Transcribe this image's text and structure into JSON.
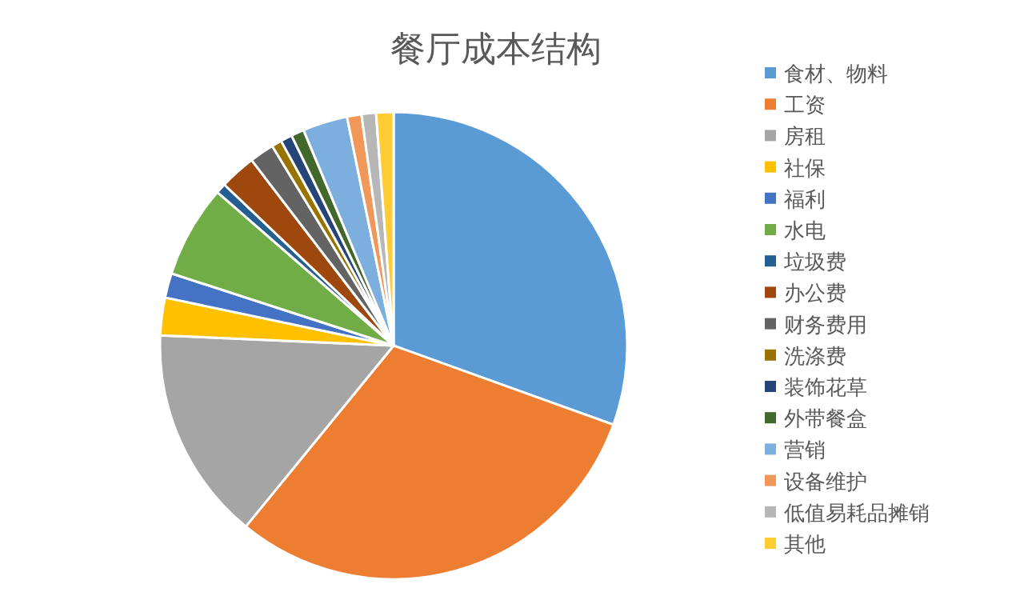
{
  "chart_data": {
    "type": "pie",
    "title": "餐厅成本结构",
    "legend": "right",
    "categories": [
      "食材、物料",
      "工资",
      "房租",
      "社保",
      "福利",
      "水电",
      "垃圾费",
      "办公费",
      "财务费用",
      "洗涤费",
      "装饰花草",
      "外带餐盒",
      "营销",
      "设备维护",
      "低值易耗品摊销",
      "其他"
    ],
    "values": [
      30.5,
      30.4,
      14.8,
      2.6,
      1.7,
      6.4,
      0.7,
      2.5,
      1.7,
      0.7,
      0.8,
      0.9,
      3.1,
      1.0,
      1.0,
      1.2
    ],
    "colors": [
      "#5b9bd5",
      "#ed7d31",
      "#a5a5a5",
      "#ffc000",
      "#4472c4",
      "#70ad47",
      "#255e91",
      "#9e480e",
      "#636363",
      "#997300",
      "#264478",
      "#43682b",
      "#7cafdd",
      "#f1975a",
      "#b7b7b7",
      "#ffcd33"
    ]
  }
}
